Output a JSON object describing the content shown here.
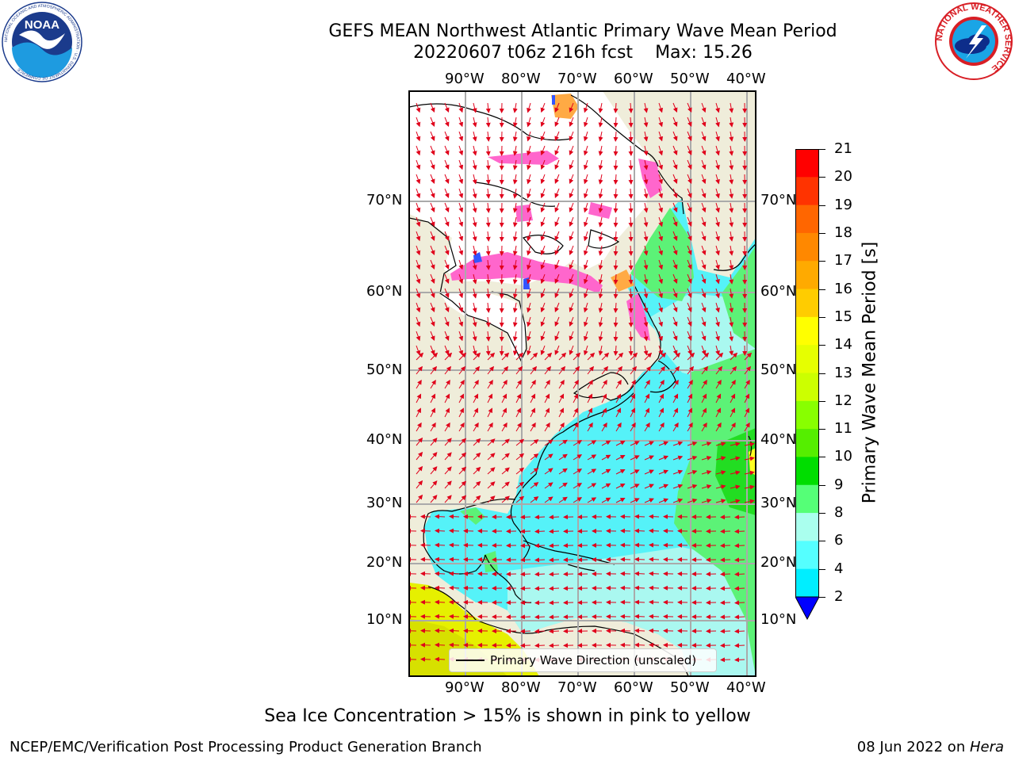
{
  "header": {
    "title_line1": "GEFS MEAN Northwest Atlantic Primary Wave Mean Period",
    "run": "20220607 t06z 216h fcst",
    "max_label": "Max: 15.26"
  },
  "logos": {
    "noaa_text": "NOAA",
    "noaa_ring": "NATIONAL OCEANIC AND ATMOSPHERIC ADMINISTRATION · U.S. DEPARTMENT OF COMMERCE",
    "nws_ring": "NATIONAL WEATHER SERVICE"
  },
  "map": {
    "longitude_labels": [
      "90°W",
      "80°W",
      "70°W",
      "60°W",
      "50°W",
      "40°W"
    ],
    "latitude_labels": [
      "70°N",
      "60°N",
      "50°N",
      "40°N",
      "30°N",
      "20°N",
      "10°N"
    ],
    "legend_label": "Primary Wave Direction (unscaled)",
    "land_color": "#efedda",
    "ice_color": "#ffffff",
    "arrow_color": "#e0001b"
  },
  "colorbar": {
    "title": "Primary Wave Mean Period [s]",
    "ticks": [
      "21",
      "20",
      "19",
      "18",
      "17",
      "16",
      "15",
      "14",
      "13",
      "12",
      "11",
      "10",
      "9",
      "8",
      "6",
      "4",
      "2"
    ],
    "colors_top_to_bottom": [
      "#ff0000",
      "#ff3300",
      "#ff6600",
      "#ff8800",
      "#ffaa00",
      "#ffcc00",
      "#ffff00",
      "#e6ff00",
      "#ccff00",
      "#88ff00",
      "#55ee00",
      "#00dd00",
      "#55ff77",
      "#aaffee",
      "#55ffff",
      "#00eeff",
      "#00ccff",
      "#0077ff"
    ],
    "under_color": "#0000ff"
  },
  "note": "Sea Ice Concentration > 15% is shown in pink to yellow",
  "footer": {
    "left": "NCEP/EMC/Verification Post Processing Product Generation Branch",
    "right_date": "08 Jun 2022 on ",
    "right_host": "Hera"
  }
}
